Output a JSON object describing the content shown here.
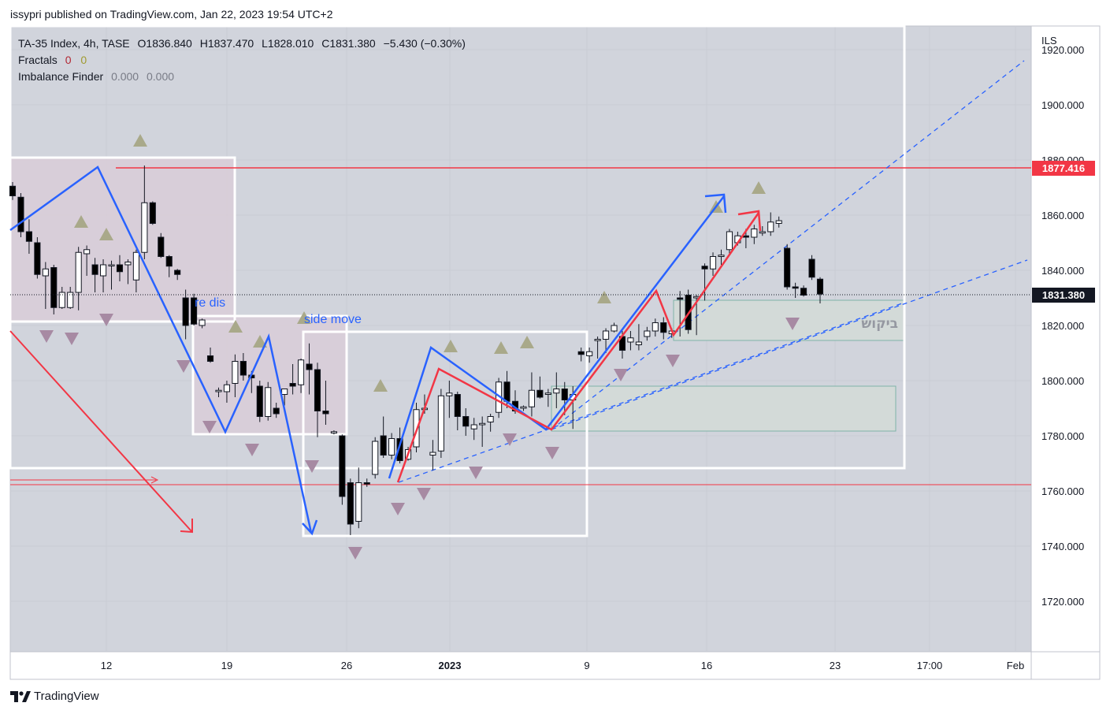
{
  "header": {
    "published": "issypri published on TradingView.com, Jan 22, 2023 19:54 UTC+2"
  },
  "legend": {
    "symbol": "TA-35 Index, 4h, TASE",
    "open": "O1836.840",
    "high": "H1837.470",
    "low": "L1828.010",
    "close": "C1831.380",
    "change": "−5.430 (−0.30%)",
    "fractals_label": "Fractals",
    "fractals_v1": "0",
    "fractals_v2": "0",
    "imbalance_label": "Imbalance Finder",
    "imbalance_v1": "0.000",
    "imbalance_v2": "0.000"
  },
  "footer": {
    "brand": "TradingView"
  },
  "colors": {
    "plot_bg": "#d1d4dc",
    "up_candle": "#ffffff",
    "down_candle": "#000000",
    "blue_line": "#2962ff",
    "red_line": "#f23645",
    "level_red": "#f23645",
    "fractal_up": "#a9a98a",
    "fractal_down": "#a78aa3"
  },
  "chart_data": {
    "type": "candlestick",
    "currency": "ILS",
    "y_ticks": [
      "1920.000",
      "1900.000",
      "1880.000",
      "1860.000",
      "1840.000",
      "1820.000",
      "1800.000",
      "1780.000",
      "1760.000",
      "1740.000",
      "1720.000"
    ],
    "x_ticks": [
      {
        "label": "12",
        "bold": false
      },
      {
        "label": "19",
        "bold": false
      },
      {
        "label": "26",
        "bold": false
      },
      {
        "label": "2023",
        "bold": true
      },
      {
        "label": "9",
        "bold": false
      },
      {
        "label": "16",
        "bold": false
      },
      {
        "label": "23",
        "bold": false
      },
      {
        "label": "17:00",
        "bold": false
      },
      {
        "label": "Feb",
        "bold": false
      }
    ],
    "price_labels": [
      {
        "value": "1877.416",
        "color": "#f23645"
      },
      {
        "value": "1831.380",
        "color": "#131722"
      }
    ],
    "annotations": [
      "re dis",
      "side move",
      "ביקוש"
    ],
    "levels": [
      {
        "price": 1877.4,
        "color": "#f23645"
      },
      {
        "price": 1762.5,
        "color": "#f23645"
      }
    ],
    "candles": [
      [
        1870.5,
        1872.0,
        1865.5,
        1867.0
      ],
      [
        1866.5,
        1868.0,
        1852.0,
        1854.0
      ],
      [
        1854.0,
        1858.5,
        1846.0,
        1850.5
      ],
      [
        1850.0,
        1852.0,
        1837.0,
        1838.5
      ],
      [
        1838.0,
        1843.0,
        1826.0,
        1840.5
      ],
      [
        1841.0,
        1842.0,
        1824.0,
        1826.5
      ],
      [
        1826.5,
        1834.0,
        1826.0,
        1832.0
      ],
      [
        1826.5,
        1834.0,
        1826.0,
        1832.0
      ],
      [
        1832.0,
        1848.5,
        1825.5,
        1846.5
      ],
      [
        1846.0,
        1849.0,
        1838.0,
        1847.5
      ],
      [
        1842.0,
        1844.5,
        1832.0,
        1838.5
      ],
      [
        1838.0,
        1844.0,
        1832.0,
        1842.0
      ],
      [
        1842.0,
        1843.5,
        1833.0,
        1842.0
      ],
      [
        1842.0,
        1845.5,
        1836.0,
        1839.5
      ],
      [
        1842.0,
        1844.0,
        1835.0,
        1843.0
      ],
      [
        1836.5,
        1847.5,
        1832.0,
        1846.5
      ],
      [
        1846.5,
        1878.0,
        1844.0,
        1864.5
      ],
      [
        1864.5,
        1865.0,
        1856.5,
        1857.0
      ],
      [
        1852.0,
        1853.5,
        1844.5,
        1845.0
      ],
      [
        1845.0,
        1845.5,
        1837.5,
        1841.5
      ],
      [
        1840.0,
        1840.5,
        1836.5,
        1838.5
      ],
      [
        1830.0,
        1833.0,
        1815.0,
        1820.0
      ],
      [
        1830.0,
        1831.5,
        1820.0,
        1820.5
      ],
      [
        1820.0,
        1822.5,
        1819.0,
        1822.0
      ],
      [
        1809.0,
        1812.0,
        1806.5,
        1807.0
      ],
      [
        1796.0,
        1797.5,
        1794.0,
        1796.5
      ],
      [
        1796.0,
        1800.0,
        1792.0,
        1798.5
      ],
      [
        1799.0,
        1809.5,
        1794.0,
        1807.0
      ],
      [
        1807.0,
        1810.0,
        1800.0,
        1802.0
      ],
      [
        1802.0,
        1803.5,
        1795.5,
        1801.0
      ],
      [
        1798.0,
        1800.0,
        1785.0,
        1787.0
      ],
      [
        1787.0,
        1799.5,
        1785.5,
        1797.5
      ],
      [
        1790.0,
        1792.0,
        1786.5,
        1788.0
      ],
      [
        1795.0,
        1797.0,
        1791.0,
        1797.0
      ],
      [
        1799.0,
        1806.0,
        1795.0,
        1798.0
      ],
      [
        1798.5,
        1808.0,
        1795.5,
        1807.5
      ],
      [
        1806.0,
        1813.5,
        1795.0,
        1804.0
      ],
      [
        1804.0,
        1806.5,
        1779.5,
        1789.0
      ],
      [
        1789.0,
        1800.0,
        1784.0,
        1788.0
      ],
      [
        1781.0,
        1782.0,
        1780.5,
        1781.5
      ],
      [
        1780.0,
        1780.5,
        1755.0,
        1758.0
      ],
      [
        1763.0,
        1764.5,
        1744.0,
        1748.0
      ],
      [
        1749.0,
        1768.5,
        1746.5,
        1763.0
      ],
      [
        1763.0,
        1764.5,
        1761.5,
        1762.5
      ],
      [
        1766.0,
        1779.5,
        1764.5,
        1778.0
      ],
      [
        1780.0,
        1787.0,
        1772.0,
        1773.0
      ],
      [
        1773.0,
        1781.0,
        1771.5,
        1779.0
      ],
      [
        1779.0,
        1783.0,
        1770.0,
        1771.0
      ],
      [
        1771.5,
        1776.0,
        1771.0,
        1775.0
      ],
      [
        1776.0,
        1792.0,
        1774.0,
        1789.5
      ],
      [
        1789.5,
        1795.0,
        1788.0,
        1790.0
      ],
      [
        1773.0,
        1778.5,
        1767.5,
        1774.0
      ],
      [
        1774.5,
        1797.0,
        1772.0,
        1794.5
      ],
      [
        1794.5,
        1800.0,
        1786.5,
        1795.5
      ],
      [
        1795.0,
        1796.0,
        1782.0,
        1787.0
      ],
      [
        1787.0,
        1790.0,
        1780.0,
        1783.5
      ],
      [
        1782.5,
        1786.5,
        1778.5,
        1784.0
      ],
      [
        1784.0,
        1787.0,
        1776.0,
        1784.5
      ],
      [
        1785.0,
        1788.0,
        1781.5,
        1787.0
      ],
      [
        1788.5,
        1801.0,
        1786.5,
        1799.5
      ],
      [
        1799.5,
        1803.5,
        1790.0,
        1792.5
      ],
      [
        1792.5,
        1796.5,
        1788.0,
        1789.0
      ],
      [
        1790.0,
        1791.0,
        1789.0,
        1790.5
      ],
      [
        1790.5,
        1803.0,
        1787.0,
        1796.5
      ],
      [
        1796.5,
        1801.5,
        1793.5,
        1794.0
      ],
      [
        1795.0,
        1797.0,
        1790.5,
        1795.5
      ],
      [
        1795.5,
        1803.0,
        1790.0,
        1797.0
      ],
      [
        1797.0,
        1799.5,
        1787.5,
        1793.0
      ],
      [
        1793.0,
        1798.0,
        1782.5,
        1795.0
      ],
      [
        1810.5,
        1812.0,
        1807.0,
        1809.5
      ],
      [
        1809.0,
        1812.0,
        1806.5,
        1810.5
      ],
      [
        1814.5,
        1816.0,
        1808.0,
        1815.0
      ],
      [
        1815.0,
        1819.0,
        1810.0,
        1818.0
      ],
      [
        1818.0,
        1821.0,
        1817.5,
        1820.0
      ],
      [
        1816.0,
        1818.0,
        1808.0,
        1811.0
      ],
      [
        1814.0,
        1818.0,
        1811.0,
        1815.5
      ],
      [
        1813.0,
        1820.5,
        1811.0,
        1814.0
      ],
      [
        1816.0,
        1819.5,
        1814.5,
        1818.0
      ],
      [
        1818.0,
        1822.5,
        1816.0,
        1821.0
      ],
      [
        1821.0,
        1823.0,
        1815.0,
        1817.5
      ],
      [
        1817.0,
        1819.0,
        1815.5,
        1818.0
      ],
      [
        1830.0,
        1832.5,
        1816.0,
        1829.5
      ],
      [
        1831.0,
        1833.0,
        1817.0,
        1818.5
      ],
      [
        1830.0,
        1831.0,
        1816.5,
        1830.5
      ],
      [
        1841.5,
        1842.5,
        1829.0,
        1840.5
      ],
      [
        1840.5,
        1846.5,
        1838.0,
        1845.0
      ],
      [
        1845.0,
        1847.5,
        1842.0,
        1845.5
      ],
      [
        1847.5,
        1855.0,
        1845.5,
        1854.0
      ],
      [
        1850.0,
        1854.0,
        1849.0,
        1852.5
      ],
      [
        1852.5,
        1855.0,
        1848.0,
        1852.0
      ],
      [
        1852.0,
        1856.5,
        1849.5,
        1855.0
      ],
      [
        1853.5,
        1856.0,
        1852.5,
        1854.0
      ],
      [
        1854.0,
        1861.0,
        1852.5,
        1857.5
      ],
      [
        1857.0,
        1859.5,
        1855.5,
        1858.0
      ],
      [
        1848.0,
        1849.5,
        1833.0,
        1834.0
      ],
      [
        1834.0,
        1835.5,
        1830.0,
        1833.5
      ],
      [
        1833.5,
        1834.5,
        1830.5,
        1831.0
      ],
      [
        1844.0,
        1845.5,
        1836.5,
        1837.5
      ],
      [
        1836.8,
        1837.5,
        1828.0,
        1831.4
      ]
    ]
  }
}
